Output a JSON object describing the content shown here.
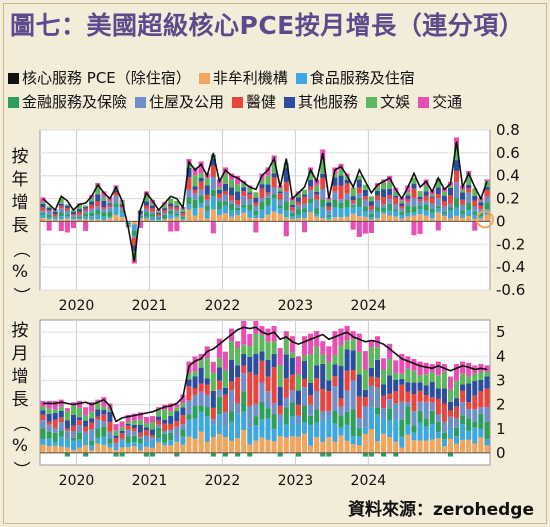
{
  "title": "圖七：美國超級核心PCE按月增長（連分項）",
  "source": "資料來源：zerohedge",
  "colors": {
    "background": "#f3ecd8",
    "title": "#5d4a8c",
    "core": "#111111",
    "nonprofit": "#f2a55d",
    "food": "#3ea7df",
    "financial": "#2e9e5b",
    "housing": "#6f8fc9",
    "medical": "#e8453c",
    "other": "#2c4d9e",
    "recreation": "#5cb85c",
    "transport": "#e94fb3"
  },
  "legend": [
    {
      "label": "核心服務 PCE（除住宿）",
      "color": "#111111"
    },
    {
      "label": "非牟利機構",
      "color": "#f2a55d"
    },
    {
      "label": "食品服務及住宿",
      "color": "#3ea7df"
    },
    {
      "label": "金融服務及保險",
      "color": "#2e9e5b"
    },
    {
      "label": "住屋及公用",
      "color": "#6f8fc9"
    },
    {
      "label": "醫健",
      "color": "#e8453c"
    },
    {
      "label": "其他服務",
      "color": "#2c4d9e"
    },
    {
      "label": "文娛",
      "color": "#5cb85c"
    },
    {
      "label": "交通",
      "color": "#e94fb3"
    }
  ],
  "chart_data": [
    {
      "type": "bar",
      "stacked": true,
      "ylabel": "按年增長（%）",
      "ylim": [
        -0.6,
        0.8
      ],
      "yticks": [
        0.8,
        0.6,
        0.4,
        0.2,
        0,
        -0.2,
        -0.4,
        -0.6
      ],
      "xticks": [
        "2020",
        "2021",
        "2022",
        "2023",
        "2024"
      ],
      "grid": true,
      "highlight_last": true,
      "series_note": "line = 核心服務 PCE（除住宿）",
      "core_line": [
        0.2,
        0.15,
        0.1,
        0.22,
        0.18,
        0.1,
        0.15,
        0.16,
        0.22,
        0.32,
        0.25,
        0.2,
        0.3,
        0.18,
        -0.05,
        -0.35,
        0.1,
        0.25,
        0.18,
        0.1,
        0.16,
        0.22,
        0.2,
        0.12,
        0.52,
        0.45,
        0.5,
        0.4,
        0.6,
        0.35,
        0.45,
        0.4,
        0.38,
        0.34,
        0.3,
        0.28,
        0.4,
        0.45,
        0.55,
        0.3,
        0.55,
        0.2,
        0.25,
        0.3,
        0.45,
        0.35,
        0.6,
        0.2,
        0.45,
        0.48,
        0.4,
        0.3,
        0.45,
        0.35,
        0.25,
        0.32,
        0.35,
        0.38,
        0.28,
        0.2,
        0.3,
        0.42,
        0.3,
        0.35,
        0.26,
        0.38,
        0.28,
        0.33,
        0.7,
        0.3,
        0.42,
        0.3,
        0.2,
        0.35
      ]
    },
    {
      "type": "bar",
      "stacked": true,
      "ylabel": "按月增長（%）",
      "ylim": [
        -0.5,
        5.5
      ],
      "yticks": [
        5,
        4,
        3,
        2,
        1,
        0
      ],
      "xticks": [
        "2020",
        "2021",
        "2022",
        "2023",
        "2024"
      ],
      "grid": true,
      "series_note": "line = 核心服務 PCE（除住宿）",
      "core_line": [
        2.05,
        2.05,
        2.05,
        2.1,
        2.05,
        2.0,
        2.05,
        2.1,
        2.0,
        2.1,
        2.2,
        1.95,
        1.3,
        1.45,
        1.5,
        1.55,
        1.6,
        1.65,
        1.7,
        1.8,
        1.9,
        1.95,
        2.05,
        2.3,
        3.6,
        3.8,
        3.9,
        4.2,
        4.3,
        4.5,
        4.7,
        4.9,
        5.1,
        5.2,
        5.15,
        5.2,
        5.0,
        4.9,
        5.0,
        4.7,
        4.8,
        4.6,
        4.5,
        4.6,
        4.7,
        4.8,
        4.9,
        4.7,
        4.8,
        4.9,
        5.0,
        4.8,
        4.7,
        4.6,
        4.65,
        4.6,
        4.5,
        4.3,
        4.1,
        3.9,
        3.8,
        3.7,
        3.6,
        3.55,
        3.5,
        3.6,
        3.5,
        3.4,
        3.5,
        3.6,
        3.55,
        3.45,
        3.5,
        3.45
      ]
    }
  ]
}
